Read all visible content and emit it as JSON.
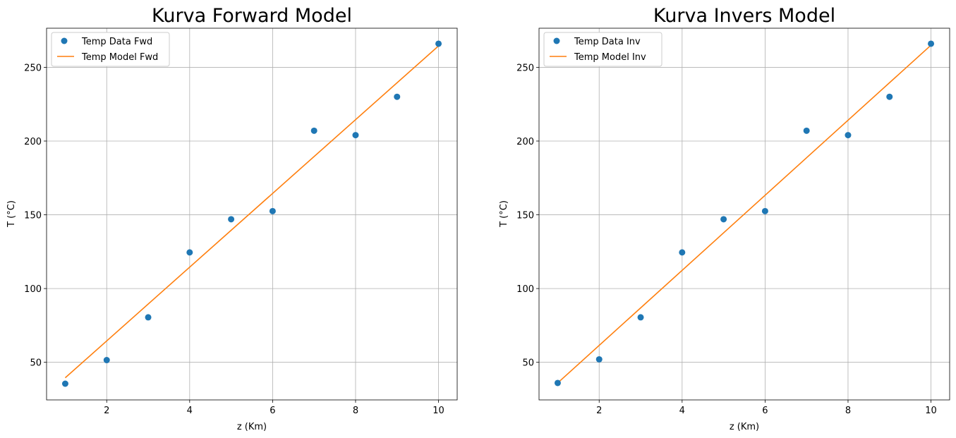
{
  "chart_data": [
    {
      "type": "line",
      "title": "Kurva Forward Model",
      "xlabel": "z  (Km)",
      "ylabel": "T  (°C)",
      "xlim": [
        0.55,
        10.45
      ],
      "ylim": [
        24.5,
        276.5
      ],
      "xticks": [
        2,
        4,
        6,
        8,
        10
      ],
      "yticks": [
        50,
        100,
        150,
        200,
        250
      ],
      "grid": true,
      "legend_position": "top-left",
      "series": [
        {
          "name": "Temp Data Fwd",
          "kind": "scatter",
          "color": "#1f77b4",
          "x": [
            1,
            2,
            3,
            4,
            5,
            6,
            7,
            8,
            9,
            10
          ],
          "y": [
            35.5,
            51.5,
            80.5,
            124.5,
            147,
            152.5,
            207,
            204,
            230,
            266
          ]
        },
        {
          "name": "Temp Model Fwd",
          "kind": "line",
          "color": "#ff7f0e",
          "x": [
            1,
            10
          ],
          "y": [
            39.5,
            264.5
          ]
        }
      ]
    },
    {
      "type": "line",
      "title": "Kurva Invers Model",
      "xlabel": "z  (Km)",
      "ylabel": "T  (°C)",
      "xlim": [
        0.55,
        10.45
      ],
      "ylim": [
        24.5,
        276.5
      ],
      "xticks": [
        2,
        4,
        6,
        8,
        10
      ],
      "yticks": [
        50,
        100,
        150,
        200,
        250
      ],
      "grid": true,
      "legend_position": "top-left",
      "series": [
        {
          "name": "Temp Data Inv",
          "kind": "scatter",
          "color": "#1f77b4",
          "x": [
            1,
            2,
            3,
            4,
            5,
            6,
            7,
            8,
            9,
            10
          ],
          "y": [
            36,
            52,
            80.5,
            124.5,
            147,
            152.5,
            207,
            204,
            230,
            266
          ]
        },
        {
          "name": "Temp Model Inv",
          "kind": "line",
          "color": "#ff7f0e",
          "x": [
            1,
            10
          ],
          "y": [
            36,
            265
          ]
        }
      ]
    }
  ]
}
